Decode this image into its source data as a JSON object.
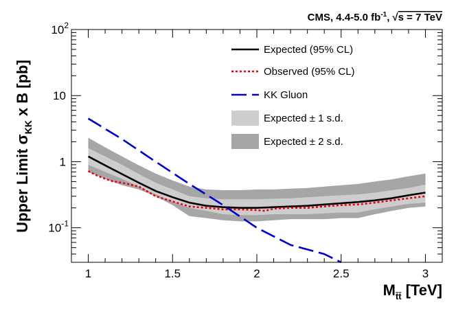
{
  "chart_data": {
    "type": "line",
    "header": {
      "experiment": "CMS, 4.4-5.0 fb",
      "lumi_exp": "-1",
      "sep": ",",
      "sqrt_s": "s = 7 TeV"
    },
    "xlabel": {
      "main": "M",
      "sub": "t̄t̄",
      "unit": "[TeV]"
    },
    "ylabel": {
      "pre": "Upper Limit σ",
      "sub": "KK",
      "post": " x B [pb]"
    },
    "xlim": [
      0.9,
      3.1
    ],
    "ylim": [
      0.03,
      100
    ],
    "yscale": "log",
    "x_ticks": [
      {
        "value": 1,
        "label": "1"
      },
      {
        "value": 1.5,
        "label": "1.5"
      },
      {
        "value": 2,
        "label": "2"
      },
      {
        "value": 2.5,
        "label": "2.5"
      },
      {
        "value": 3,
        "label": "3"
      }
    ],
    "y_ticks": [
      {
        "value": 0.1,
        "base": "10",
        "exp": "-1"
      },
      {
        "value": 1,
        "base": "1",
        "exp": ""
      },
      {
        "value": 10,
        "base": "10",
        "exp": ""
      },
      {
        "value": 100,
        "base": "10",
        "exp": "2"
      }
    ],
    "legend": [
      {
        "key": "expected",
        "label": "Expected (95% CL)",
        "style": "line",
        "color": "#000000",
        "dash": "none"
      },
      {
        "key": "observed",
        "label": "Observed (95% CL)",
        "style": "line",
        "color": "#e8000b",
        "dash": "3,3"
      },
      {
        "key": "kkgluon",
        "label": "KK Gluon",
        "style": "line",
        "color": "#0000cc",
        "dash": "22,8"
      },
      {
        "key": "band1",
        "label": "Expected ± 1 s.d.",
        "style": "fill",
        "color": "#cdcdcd"
      },
      {
        "key": "band2",
        "label": "Expected ± 2 s.d.",
        "style": "fill",
        "color": "#a6a6a6"
      }
    ],
    "bands": {
      "x": [
        1.0,
        1.1,
        1.2,
        1.3,
        1.4,
        1.5,
        1.6,
        1.7,
        1.8,
        1.9,
        2.0,
        2.1,
        2.2,
        2.3,
        2.4,
        2.5,
        2.6,
        2.7,
        2.8,
        2.9,
        3.0
      ],
      "lo2": [
        0.7,
        0.55,
        0.44,
        0.38,
        0.3,
        0.22,
        0.15,
        0.14,
        0.13,
        0.125,
        0.125,
        0.13,
        0.135,
        0.135,
        0.135,
        0.14,
        0.14,
        0.16,
        0.18,
        0.2,
        0.21
      ],
      "lo1": [
        0.9,
        0.7,
        0.55,
        0.42,
        0.32,
        0.25,
        0.2,
        0.18,
        0.16,
        0.155,
        0.155,
        0.16,
        0.16,
        0.16,
        0.165,
        0.17,
        0.17,
        0.19,
        0.21,
        0.23,
        0.24
      ],
      "hi1": [
        1.6,
        1.2,
        0.9,
        0.65,
        0.48,
        0.38,
        0.3,
        0.28,
        0.27,
        0.27,
        0.27,
        0.275,
        0.28,
        0.29,
        0.3,
        0.31,
        0.32,
        0.34,
        0.37,
        0.4,
        0.45
      ],
      "hi2": [
        2.3,
        1.65,
        1.2,
        0.88,
        0.66,
        0.52,
        0.42,
        0.38,
        0.37,
        0.37,
        0.38,
        0.38,
        0.39,
        0.4,
        0.42,
        0.44,
        0.46,
        0.5,
        0.54,
        0.6,
        0.66
      ]
    },
    "series": [
      {
        "key": "expected",
        "name": "Expected (95% CL)",
        "x": [
          1.0,
          1.1,
          1.2,
          1.3,
          1.4,
          1.5,
          1.6,
          1.7,
          1.8,
          1.9,
          2.0,
          2.1,
          2.2,
          2.3,
          2.4,
          2.5,
          2.6,
          2.7,
          2.8,
          2.9,
          3.0
        ],
        "y": [
          1.2,
          0.88,
          0.65,
          0.48,
          0.36,
          0.29,
          0.24,
          0.215,
          0.205,
          0.2,
          0.2,
          0.205,
          0.21,
          0.215,
          0.225,
          0.235,
          0.245,
          0.26,
          0.28,
          0.31,
          0.34
        ]
      },
      {
        "key": "observed",
        "name": "Observed (95% CL)",
        "x": [
          1.0,
          1.05,
          1.1,
          1.15,
          1.2,
          1.3,
          1.4,
          1.5,
          1.6,
          1.7,
          1.8,
          1.9,
          2.0,
          2.05,
          2.1,
          2.2,
          2.3,
          2.4,
          2.5,
          2.6,
          2.7,
          2.8,
          2.9,
          3.0
        ],
        "y": [
          0.72,
          0.62,
          0.55,
          0.5,
          0.48,
          0.42,
          0.3,
          0.25,
          0.21,
          0.2,
          0.19,
          0.19,
          0.185,
          0.18,
          0.195,
          0.2,
          0.2,
          0.21,
          0.22,
          0.225,
          0.24,
          0.26,
          0.28,
          0.3
        ]
      },
      {
        "key": "kkgluon",
        "name": "KK Gluon",
        "x": [
          1.0,
          1.2,
          1.4,
          1.6,
          1.8,
          2.0,
          2.2,
          2.4,
          2.5
        ],
        "y": [
          4.5,
          2.2,
          1.0,
          0.46,
          0.22,
          0.1,
          0.055,
          0.04,
          0.03
        ]
      }
    ]
  }
}
